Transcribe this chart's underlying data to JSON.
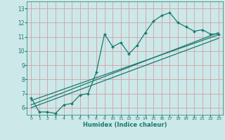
{
  "xlabel": "Humidex (Indice chaleur)",
  "xlim": [
    -0.5,
    23.5
  ],
  "ylim": [
    5.5,
    13.5
  ],
  "bg_color": "#cce8e8",
  "grid_color": "#d4a0a8",
  "line_color": "#1a7a6e",
  "xticks": [
    0,
    1,
    2,
    3,
    4,
    5,
    6,
    7,
    8,
    9,
    10,
    11,
    12,
    13,
    14,
    15,
    16,
    17,
    18,
    19,
    20,
    21,
    22,
    23
  ],
  "yticks": [
    6,
    7,
    8,
    9,
    10,
    11,
    12,
    13
  ],
  "data_x": [
    0,
    1,
    2,
    3,
    4,
    5,
    6,
    7,
    8,
    9,
    10,
    11,
    12,
    13,
    14,
    15,
    16,
    17,
    18,
    19,
    20,
    21,
    22,
    23
  ],
  "data_y": [
    6.7,
    5.7,
    5.7,
    5.6,
    6.2,
    6.3,
    6.9,
    7.0,
    8.5,
    11.2,
    10.3,
    10.6,
    9.8,
    10.4,
    11.3,
    12.1,
    12.5,
    12.7,
    12.0,
    11.7,
    11.4,
    11.5,
    11.2,
    11.2
  ],
  "trend1_x": [
    0,
    23
  ],
  "trend1_y": [
    6.2,
    11.3
  ],
  "trend2_x": [
    0,
    23
  ],
  "trend2_y": [
    6.5,
    11.15
  ],
  "trend3_x": [
    0,
    23
  ],
  "trend3_y": [
    6.0,
    10.9
  ]
}
